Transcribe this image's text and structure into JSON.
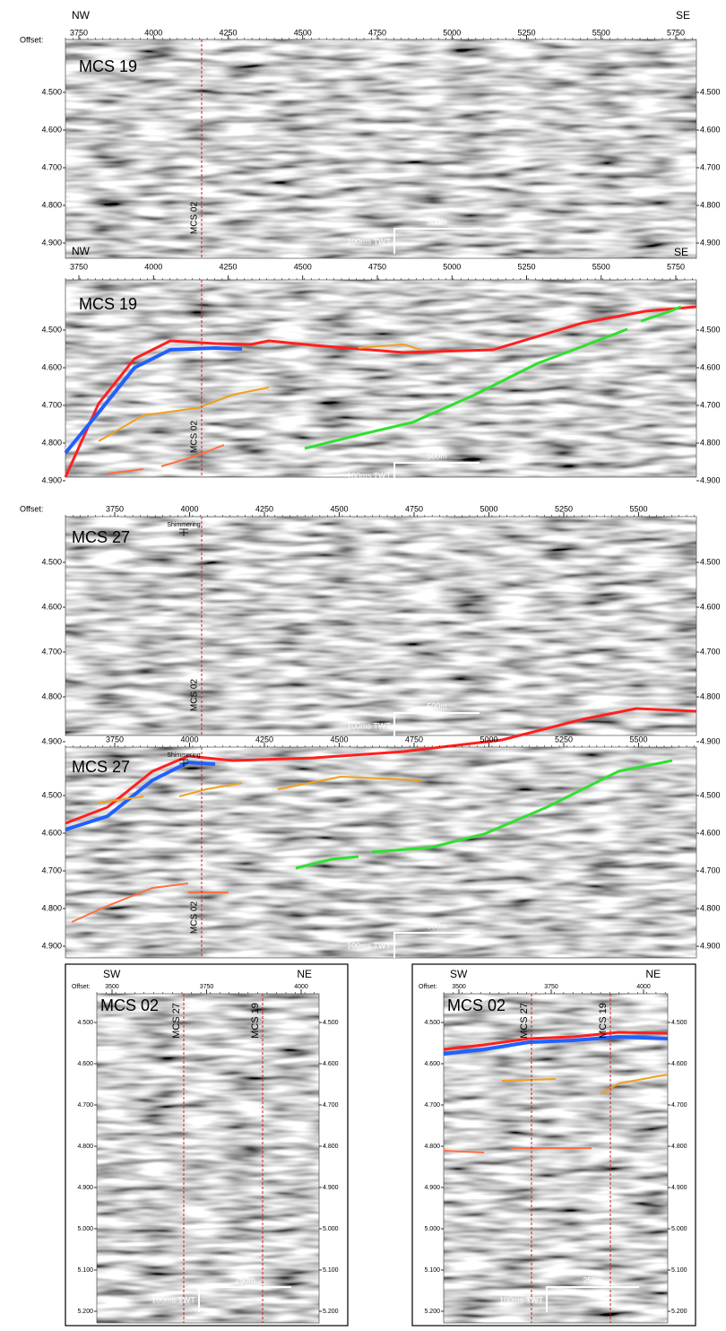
{
  "panels": [
    {
      "title": "MCS 19",
      "directions": [
        "NW",
        "SE"
      ],
      "offset_label": "Offset:",
      "xticks": [
        "3750",
        "4000",
        "4250",
        "4500",
        "4750",
        "5000",
        "5250",
        "5500",
        "5750"
      ],
      "yticks": [
        "4.500",
        "4.600",
        "4.700",
        "4.800",
        "4.900"
      ],
      "crosslines": [
        "MCS 02"
      ],
      "scale_length": "500m",
      "scale_time": "100ms TWT"
    },
    {
      "title": "MCS 19",
      "directions": [
        "NW",
        "SE"
      ],
      "xticks": [
        "3750",
        "4000",
        "4250",
        "4500",
        "4750",
        "5000",
        "5250",
        "5500",
        "5750"
      ],
      "yticks": [
        "4.500",
        "4.600",
        "4.700",
        "4.800",
        "4.900"
      ],
      "crosslines": [
        "MCS 02"
      ],
      "scale_length": "500m",
      "scale_time": "100ms TWT"
    },
    {
      "title": "MCS 27",
      "offset_label": "Offset:",
      "note": "Shimmering",
      "xticks": [
        "3750",
        "4000",
        "4250",
        "4500",
        "4750",
        "5000",
        "5250",
        "5500"
      ],
      "yticks": [
        "4.500",
        "4.600",
        "4.700",
        "4.800",
        "4.900"
      ],
      "crosslines": [
        "MCS 02"
      ],
      "scale_length": "500m",
      "scale_time": "100ms TWT"
    },
    {
      "title": "MCS 27",
      "note": "Shimmering",
      "xticks": [
        "3750",
        "4000",
        "4250",
        "4500",
        "4750",
        "5000",
        "5250",
        "5500"
      ],
      "yticks": [
        "4.500",
        "4.600",
        "4.700",
        "4.800",
        "4.900"
      ],
      "crosslines": [
        "MCS 02"
      ],
      "scale_length": "500m",
      "scale_time": "100ms TWT"
    },
    {
      "title": "MCS 02",
      "directions": [
        "SW",
        "NE"
      ],
      "offset_label": "Offset:",
      "xticks": [
        "3500",
        "3750",
        "4000"
      ],
      "yticks": [
        "4.500",
        "4.600",
        "4.700",
        "4.800",
        "4.900",
        "5.000",
        "5.100",
        "5.200"
      ],
      "crosslines": [
        "MCS 27",
        "MCS 19"
      ],
      "scale_length": "250m",
      "scale_time": "100ms TWT"
    },
    {
      "title": "MCS 02",
      "directions": [
        "SW",
        "NE"
      ],
      "offset_label": "Offset:",
      "xticks": [
        "3500",
        "3750",
        "4000"
      ],
      "yticks": [
        "4.500",
        "4.600",
        "4.700",
        "4.800",
        "4.900",
        "5.000",
        "5.100",
        "5.200"
      ],
      "crosslines": [
        "MCS 27",
        "MCS 19"
      ],
      "scale_length": "250m",
      "scale_time": "100ms TWT"
    }
  ]
}
